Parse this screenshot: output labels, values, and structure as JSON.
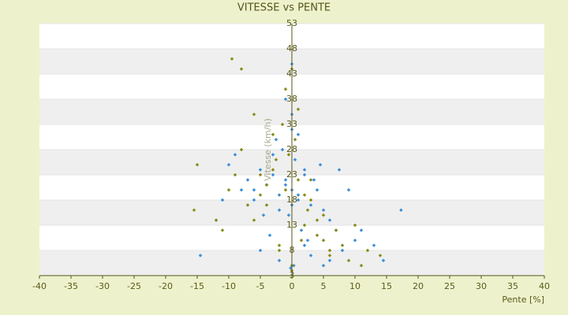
{
  "chart_data": {
    "type": "scatter",
    "title": "VITESSE vs PENTE",
    "x_label": "Pente [%]",
    "y_label": "Vitesse (km/h)",
    "xlim": [
      -40,
      40
    ],
    "xticks": [
      -40,
      -35,
      -30,
      -25,
      -20,
      -15,
      -10,
      -5,
      0,
      5,
      10,
      15,
      20,
      25,
      30,
      35,
      40
    ],
    "ylim": [
      3,
      53
    ],
    "yticks": [
      3,
      8,
      13,
      18,
      23,
      28,
      33,
      38,
      43,
      48,
      53
    ],
    "grid": true,
    "series": [
      {
        "color": "#3a8fd8",
        "x": [
          -1,
          0,
          1,
          2,
          -2,
          3,
          -3,
          0.5,
          -0.5,
          1.5,
          -1.5,
          4,
          -4,
          5,
          -5,
          2.5,
          -2.5,
          6,
          -6,
          7,
          -7,
          8,
          -8,
          0,
          1,
          -1,
          2,
          -2,
          3,
          -3,
          0,
          10,
          12,
          -9,
          -10,
          17.3,
          14.5,
          -14.5,
          -11,
          9,
          11,
          -0.2,
          0.3,
          4.5,
          -4.5,
          3.5,
          -3.5,
          1,
          -1,
          0,
          2,
          -2,
          6,
          -6,
          13,
          -12,
          7.5,
          5,
          -5,
          0
        ],
        "values": [
          22,
          20,
          18,
          24,
          19,
          17,
          23,
          26,
          15,
          12,
          28,
          20,
          21,
          16,
          24,
          10,
          30,
          14,
          18,
          12,
          22,
          8,
          20,
          35,
          31,
          38,
          9,
          6,
          7,
          27,
          45,
          10,
          8,
          27,
          25,
          16,
          6,
          7,
          18,
          20,
          12,
          4.5,
          5,
          25,
          15,
          22,
          11,
          19,
          21,
          17,
          23,
          16,
          6,
          20,
          9,
          14,
          24,
          5,
          8,
          32
        ]
      },
      {
        "color": "#8a8a1a",
        "x": [
          -9.5,
          -8,
          -15,
          -15.5,
          -1,
          0,
          1,
          2,
          -2,
          3,
          -3,
          4,
          -4,
          5,
          -5,
          6,
          -6,
          7,
          -7,
          8,
          -8,
          9,
          -9,
          10,
          -10,
          11,
          -11,
          12,
          -12,
          0.5,
          -0.5,
          1.5,
          -1.5,
          2.5,
          -2.5,
          0,
          0,
          -1,
          1,
          -2,
          2,
          -3,
          3,
          -4,
          4,
          -5,
          5,
          -6,
          6,
          14
        ],
        "values": [
          46,
          44,
          25,
          16,
          20,
          5,
          22,
          13,
          9,
          18,
          24,
          11,
          21,
          15,
          19,
          7,
          14,
          12,
          17,
          9,
          28,
          6,
          23,
          13,
          20,
          5,
          12,
          8,
          14,
          30,
          27,
          10,
          33,
          16,
          26,
          4,
          44,
          40,
          36,
          8,
          19,
          31,
          22,
          17,
          14,
          23,
          10,
          35,
          8,
          7
        ]
      }
    ]
  }
}
